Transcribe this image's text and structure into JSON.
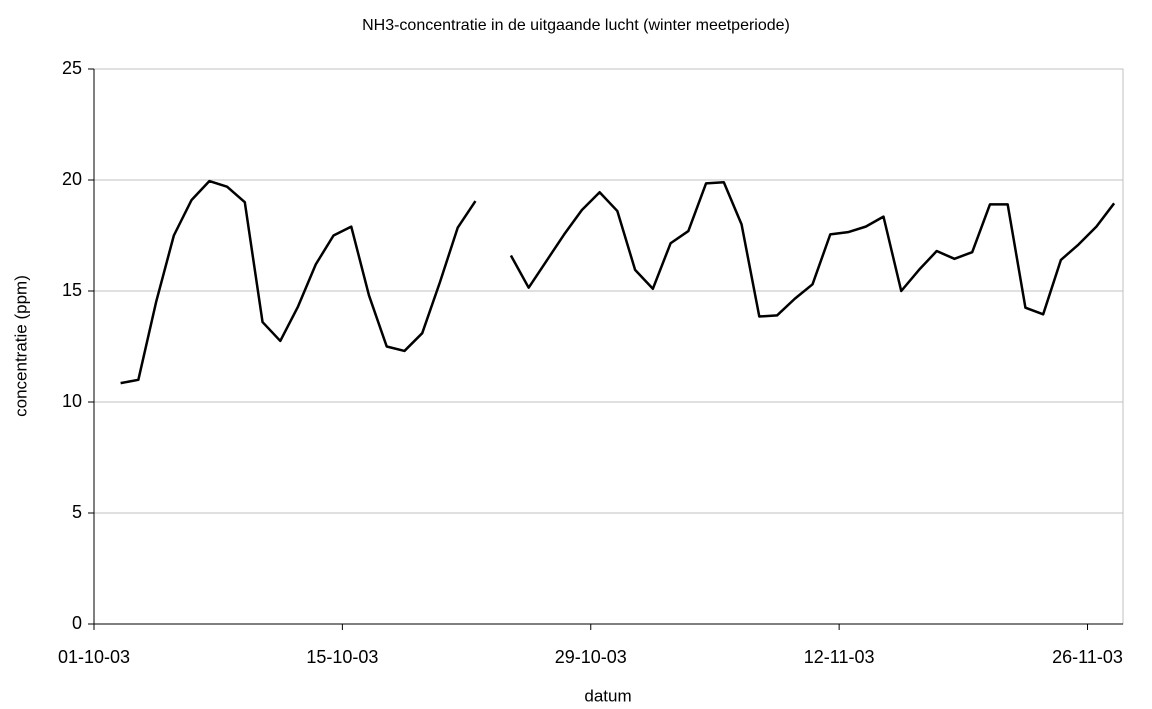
{
  "chart_data": {
    "type": "line",
    "title": "NH3-concentratie in de uitgaande lucht (winter meetperiode)",
    "x_label": "datum",
    "y_label": "concentratie (ppm)",
    "x": [
      "02-10-03",
      "03-10-03",
      "04-10-03",
      "05-10-03",
      "06-10-03",
      "07-10-03",
      "08-10-03",
      "09-10-03",
      "10-10-03",
      "11-10-03",
      "12-10-03",
      "13-10-03",
      "14-10-03",
      "15-10-03",
      "16-10-03",
      "17-10-03",
      "18-10-03",
      "19-10-03",
      "20-10-03",
      "21-10-03",
      "22-10-03",
      "23-10-03",
      "24-10-03",
      "25-10-03",
      "26-10-03",
      "27-10-03",
      "28-10-03",
      "29-10-03",
      "30-10-03",
      "31-10-03",
      "01-11-03",
      "02-11-03",
      "03-11-03",
      "04-11-03",
      "05-11-03",
      "06-11-03",
      "07-11-03",
      "08-11-03",
      "09-11-03",
      "10-11-03",
      "11-11-03",
      "12-11-03",
      "13-11-03",
      "14-11-03",
      "15-11-03",
      "16-11-03",
      "17-11-03",
      "18-11-03",
      "19-11-03",
      "20-11-03",
      "21-11-03",
      "22-11-03",
      "23-11-03",
      "24-11-03",
      "25-11-03",
      "26-11-03",
      "27-11-03"
    ],
    "series": [
      {
        "name": "NH3",
        "color": "#000000",
        "values": [
          10.85,
          11.0,
          14.5,
          17.5,
          19.1,
          19.95,
          19.7,
          19.0,
          13.6,
          12.75,
          14.3,
          16.2,
          17.5,
          17.9,
          14.8,
          12.5,
          12.3,
          13.1,
          15.4,
          17.85,
          19.05,
          null,
          16.6,
          15.15,
          16.35,
          17.55,
          18.65,
          19.45,
          18.6,
          15.95,
          15.1,
          17.15,
          17.7,
          19.85,
          19.9,
          18.0,
          13.85,
          13.9,
          14.65,
          15.3,
          17.55,
          17.65,
          17.9,
          18.35,
          15.0,
          15.95,
          16.8,
          16.45,
          16.75,
          18.9,
          18.9,
          14.25,
          13.95,
          16.4,
          17.1,
          17.9,
          18.95
        ]
      }
    ],
    "xlim": [
      "01-10-03",
      "28-11-03"
    ],
    "xticks": [
      "01-10-03",
      "15-10-03",
      "29-10-03",
      "12-11-03",
      "26-11-03"
    ],
    "ylim": [
      0,
      25
    ],
    "yticks": [
      0,
      5,
      10,
      15,
      20,
      25
    ],
    "grid": true
  }
}
